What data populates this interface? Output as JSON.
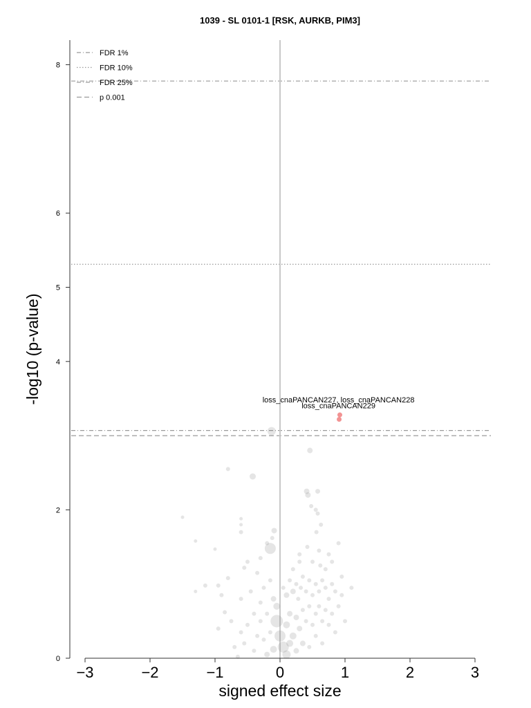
{
  "chart_data": {
    "type": "scatter",
    "title": "1039 - SL 0101-1 [RSK, AURKB, PIM3]",
    "xlabel": "signed effect size",
    "ylabel": "-log10 (p-value)",
    "xlim": [
      -3,
      3
    ],
    "ylim": [
      0,
      8.3
    ],
    "xticks": [
      -3,
      -2,
      -1,
      0,
      1,
      2,
      3
    ],
    "yticks": [
      0,
      2,
      4,
      5,
      6,
      8
    ],
    "grid": false,
    "legend_position": "top-left",
    "thresholds": [
      {
        "name": "FDR 1%",
        "style": "dashdot",
        "y": 7.78
      },
      {
        "name": "FDR 10%",
        "style": "dotted",
        "y": 5.31
      },
      {
        "name": "FDR 25%",
        "style": "dashdot",
        "y": 3.07
      },
      {
        "name": "p 0.001",
        "style": "dashed",
        "y": 3.0
      }
    ],
    "highlighted_points": [
      {
        "x": 0.92,
        "y": 3.28,
        "color": "#f08080"
      },
      {
        "x": 0.91,
        "y": 3.22,
        "color": "#f08080"
      }
    ],
    "annotations": [
      {
        "text": "loss_cnaPANCAN227, loss_cnaPANCAN228",
        "x": 0.9,
        "y": 3.45
      },
      {
        "text": "loss_cnaPANCAN229",
        "x": 0.9,
        "y": 3.37
      }
    ],
    "background_points": [
      {
        "x": -0.13,
        "y": 3.06,
        "s": 6
      },
      {
        "x": 0.46,
        "y": 2.8,
        "s": 4
      },
      {
        "x": -0.8,
        "y": 2.55,
        "s": 3
      },
      {
        "x": -0.42,
        "y": 2.45,
        "s": 4.5
      },
      {
        "x": 0.41,
        "y": 2.25,
        "s": 4
      },
      {
        "x": 0.58,
        "y": 2.25,
        "s": 3.5
      },
      {
        "x": 0.43,
        "y": 2.2,
        "s": 4
      },
      {
        "x": 0.48,
        "y": 2.05,
        "s": 3
      },
      {
        "x": 0.55,
        "y": 2.0,
        "s": 3
      },
      {
        "x": 0.58,
        "y": 1.95,
        "s": 3
      },
      {
        "x": 0.63,
        "y": 1.8,
        "s": 3
      },
      {
        "x": 0.56,
        "y": 1.7,
        "s": 3
      },
      {
        "x": -1.5,
        "y": 1.9,
        "s": 2.5
      },
      {
        "x": -0.6,
        "y": 1.88,
        "s": 2.5
      },
      {
        "x": -0.6,
        "y": 1.8,
        "s": 2.5
      },
      {
        "x": -0.09,
        "y": 1.72,
        "s": 4
      },
      {
        "x": -0.6,
        "y": 1.7,
        "s": 3
      },
      {
        "x": -1.3,
        "y": 1.58,
        "s": 2.5
      },
      {
        "x": -1.0,
        "y": 1.47,
        "s": 2.5
      },
      {
        "x": -0.15,
        "y": 1.48,
        "s": 8
      },
      {
        "x": -0.12,
        "y": 1.62,
        "s": 3
      },
      {
        "x": -0.2,
        "y": 1.55,
        "s": 3
      },
      {
        "x": 0.42,
        "y": 1.5,
        "s": 3
      },
      {
        "x": 0.3,
        "y": 1.4,
        "s": 3
      },
      {
        "x": 0.6,
        "y": 1.45,
        "s": 3
      },
      {
        "x": 0.75,
        "y": 1.4,
        "s": 3
      },
      {
        "x": 0.9,
        "y": 1.55,
        "s": 3
      },
      {
        "x": 0.3,
        "y": 1.3,
        "s": 3
      },
      {
        "x": 0.5,
        "y": 1.3,
        "s": 3
      },
      {
        "x": 0.62,
        "y": 1.25,
        "s": 3
      },
      {
        "x": 0.8,
        "y": 1.3,
        "s": 3
      },
      {
        "x": -0.5,
        "y": 1.3,
        "s": 3
      },
      {
        "x": -0.55,
        "y": 1.22,
        "s": 3
      },
      {
        "x": -0.35,
        "y": 1.15,
        "s": 3
      },
      {
        "x": -0.8,
        "y": 1.08,
        "s": 3
      },
      {
        "x": -0.95,
        "y": 0.98,
        "s": 3
      },
      {
        "x": -1.15,
        "y": 0.98,
        "s": 3
      },
      {
        "x": -0.9,
        "y": 0.85,
        "s": 3
      },
      {
        "x": -0.6,
        "y": 0.8,
        "s": 3
      },
      {
        "x": -0.45,
        "y": 0.9,
        "s": 3
      },
      {
        "x": -0.25,
        "y": 0.95,
        "s": 3
      },
      {
        "x": -0.15,
        "y": 1.05,
        "s": 3
      },
      {
        "x": -0.3,
        "y": 0.75,
        "s": 3
      },
      {
        "x": -0.1,
        "y": 0.8,
        "s": 4
      },
      {
        "x": -0.05,
        "y": 0.7,
        "s": 5
      },
      {
        "x": 0.05,
        "y": 0.95,
        "s": 3
      },
      {
        "x": 0.1,
        "y": 0.85,
        "s": 4
      },
      {
        "x": 0.15,
        "y": 1.05,
        "s": 3
      },
      {
        "x": 0.2,
        "y": 0.9,
        "s": 4
      },
      {
        "x": 0.25,
        "y": 1.0,
        "s": 3
      },
      {
        "x": 0.28,
        "y": 0.8,
        "s": 3
      },
      {
        "x": 0.32,
        "y": 0.95,
        "s": 3
      },
      {
        "x": 0.35,
        "y": 1.1,
        "s": 3
      },
      {
        "x": 0.4,
        "y": 0.9,
        "s": 3
      },
      {
        "x": 0.45,
        "y": 1.05,
        "s": 3
      },
      {
        "x": 0.5,
        "y": 0.85,
        "s": 3
      },
      {
        "x": 0.55,
        "y": 1.0,
        "s": 3
      },
      {
        "x": 0.6,
        "y": 0.9,
        "s": 3
      },
      {
        "x": 0.65,
        "y": 1.05,
        "s": 3
      },
      {
        "x": 0.7,
        "y": 0.95,
        "s": 3
      },
      {
        "x": 0.75,
        "y": 0.8,
        "s": 3
      },
      {
        "x": 0.8,
        "y": 1.0,
        "s": 3
      },
      {
        "x": 0.85,
        "y": 0.9,
        "s": 3
      },
      {
        "x": 0.95,
        "y": 0.85,
        "s": 3
      },
      {
        "x": 1.1,
        "y": 0.95,
        "s": 3
      },
      {
        "x": -0.2,
        "y": 0.6,
        "s": 3
      },
      {
        "x": -0.3,
        "y": 0.5,
        "s": 3
      },
      {
        "x": -0.4,
        "y": 0.6,
        "s": 3
      },
      {
        "x": -0.5,
        "y": 0.45,
        "s": 3
      },
      {
        "x": -0.6,
        "y": 0.35,
        "s": 3
      },
      {
        "x": -0.75,
        "y": 0.5,
        "s": 3
      },
      {
        "x": -0.85,
        "y": 0.62,
        "s": 3
      },
      {
        "x": -0.55,
        "y": 0.2,
        "s": 3
      },
      {
        "x": -0.7,
        "y": 0.15,
        "s": 3
      },
      {
        "x": -0.35,
        "y": 0.3,
        "s": 3
      },
      {
        "x": -0.25,
        "y": 0.25,
        "s": 3
      },
      {
        "x": -0.15,
        "y": 0.35,
        "s": 3
      },
      {
        "x": -0.05,
        "y": 0.5,
        "s": 9
      },
      {
        "x": 0.0,
        "y": 0.3,
        "s": 8
      },
      {
        "x": 0.05,
        "y": 0.15,
        "s": 8
      },
      {
        "x": 0.1,
        "y": 0.45,
        "s": 5
      },
      {
        "x": 0.15,
        "y": 0.6,
        "s": 4
      },
      {
        "x": 0.2,
        "y": 0.3,
        "s": 5
      },
      {
        "x": 0.25,
        "y": 0.55,
        "s": 4
      },
      {
        "x": 0.3,
        "y": 0.4,
        "s": 4
      },
      {
        "x": 0.35,
        "y": 0.65,
        "s": 3
      },
      {
        "x": 0.4,
        "y": 0.5,
        "s": 3
      },
      {
        "x": 0.45,
        "y": 0.7,
        "s": 3
      },
      {
        "x": 0.5,
        "y": 0.45,
        "s": 3
      },
      {
        "x": 0.55,
        "y": 0.6,
        "s": 3
      },
      {
        "x": 0.6,
        "y": 0.7,
        "s": 3
      },
      {
        "x": 0.65,
        "y": 0.5,
        "s": 3
      },
      {
        "x": 0.7,
        "y": 0.65,
        "s": 3
      },
      {
        "x": 0.75,
        "y": 0.45,
        "s": 3
      },
      {
        "x": 0.8,
        "y": 0.6,
        "s": 3
      },
      {
        "x": 0.9,
        "y": 0.7,
        "s": 3
      },
      {
        "x": 1.0,
        "y": 0.5,
        "s": 3
      },
      {
        "x": 0.15,
        "y": 0.2,
        "s": 5
      },
      {
        "x": 0.25,
        "y": 0.1,
        "s": 4
      },
      {
        "x": 0.35,
        "y": 0.2,
        "s": 4
      },
      {
        "x": 0.1,
        "y": 0.05,
        "s": 6
      },
      {
        "x": -0.1,
        "y": 0.12,
        "s": 5
      },
      {
        "x": -0.2,
        "y": 0.05,
        "s": 4
      },
      {
        "x": -0.4,
        "y": 0.1,
        "s": 3
      },
      {
        "x": 0.45,
        "y": 0.15,
        "s": 3
      },
      {
        "x": 0.55,
        "y": 0.3,
        "s": 3
      },
      {
        "x": -0.65,
        "y": 0.02,
        "s": 3
      },
      {
        "x": 0.65,
        "y": 0.2,
        "s": 3
      },
      {
        "x": 0.85,
        "y": 0.35,
        "s": 3
      },
      {
        "x": -0.95,
        "y": 0.4,
        "s": 3
      },
      {
        "x": -1.3,
        "y": 0.9,
        "s": 2.5
      },
      {
        "x": -0.3,
        "y": 1.35,
        "s": 3
      },
      {
        "x": 0.2,
        "y": 1.2,
        "s": 3
      },
      {
        "x": 0.7,
        "y": 1.2,
        "s": 3
      },
      {
        "x": 0.95,
        "y": 1.1,
        "s": 3
      }
    ]
  }
}
